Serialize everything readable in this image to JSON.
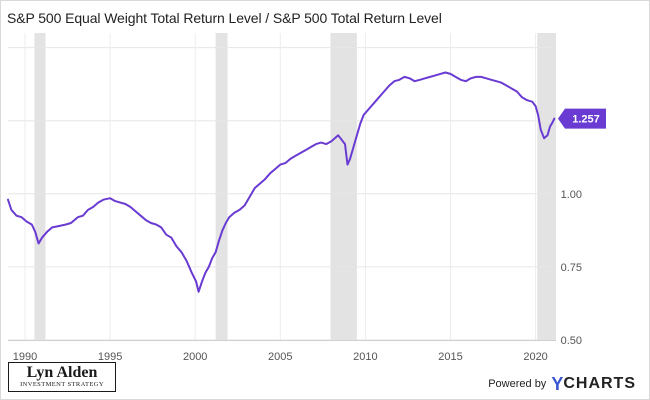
{
  "chart_data": {
    "type": "line",
    "title": "S&P 500 Equal Weight Total Return Level / S&P 500 Total Return Level",
    "xlabel": "",
    "ylabel": "",
    "xlim": [
      1989.0,
      2021.2
    ],
    "ylim": [
      0.5,
      1.55
    ],
    "x_ticks": [
      "1990",
      "1995",
      "2000",
      "2005",
      "2010",
      "2015",
      "2020"
    ],
    "y_ticks": [
      "0.50",
      "0.75",
      "1.00"
    ],
    "grid": true,
    "y_axis_side": "right",
    "line_color": "#6a3bd2",
    "recession_color": "#e3e3e3",
    "recessions": [
      [
        1990.55,
        1991.2
      ],
      [
        2001.2,
        2001.9
      ],
      [
        2007.95,
        2009.5
      ],
      [
        2020.1,
        2021.2
      ]
    ],
    "last_value_label": "1.257",
    "series": [
      {
        "values": [
          [
            1989.0,
            0.98
          ],
          [
            1989.2,
            0.945
          ],
          [
            1989.5,
            0.925
          ],
          [
            1989.8,
            0.92
          ],
          [
            1990.1,
            0.905
          ],
          [
            1990.4,
            0.895
          ],
          [
            1990.6,
            0.87
          ],
          [
            1990.8,
            0.83
          ],
          [
            1991.0,
            0.85
          ],
          [
            1991.3,
            0.87
          ],
          [
            1991.6,
            0.885
          ],
          [
            1992.0,
            0.89
          ],
          [
            1992.4,
            0.895
          ],
          [
            1992.7,
            0.9
          ],
          [
            1992.9,
            0.91
          ],
          [
            1993.1,
            0.92
          ],
          [
            1993.4,
            0.925
          ],
          [
            1993.7,
            0.945
          ],
          [
            1994.0,
            0.955
          ],
          [
            1994.3,
            0.97
          ],
          [
            1994.6,
            0.98
          ],
          [
            1995.0,
            0.985
          ],
          [
            1995.3,
            0.975
          ],
          [
            1995.6,
            0.97
          ],
          [
            1995.9,
            0.965
          ],
          [
            1996.2,
            0.955
          ],
          [
            1996.5,
            0.94
          ],
          [
            1996.8,
            0.925
          ],
          [
            1997.1,
            0.91
          ],
          [
            1997.4,
            0.9
          ],
          [
            1997.7,
            0.895
          ],
          [
            1998.0,
            0.885
          ],
          [
            1998.3,
            0.86
          ],
          [
            1998.6,
            0.85
          ],
          [
            1998.9,
            0.82
          ],
          [
            1999.2,
            0.8
          ],
          [
            1999.5,
            0.77
          ],
          [
            1999.8,
            0.73
          ],
          [
            2000.05,
            0.7
          ],
          [
            2000.2,
            0.665
          ],
          [
            2000.4,
            0.7
          ],
          [
            2000.6,
            0.73
          ],
          [
            2000.8,
            0.75
          ],
          [
            2001.0,
            0.78
          ],
          [
            2001.2,
            0.8
          ],
          [
            2001.4,
            0.84
          ],
          [
            2001.6,
            0.875
          ],
          [
            2001.8,
            0.9
          ],
          [
            2002.0,
            0.92
          ],
          [
            2002.3,
            0.935
          ],
          [
            2002.6,
            0.945
          ],
          [
            2002.9,
            0.96
          ],
          [
            2003.2,
            0.99
          ],
          [
            2003.5,
            1.02
          ],
          [
            2003.8,
            1.035
          ],
          [
            2004.1,
            1.05
          ],
          [
            2004.4,
            1.07
          ],
          [
            2004.7,
            1.085
          ],
          [
            2005.0,
            1.1
          ],
          [
            2005.3,
            1.105
          ],
          [
            2005.6,
            1.12
          ],
          [
            2005.9,
            1.13
          ],
          [
            2006.2,
            1.14
          ],
          [
            2006.5,
            1.15
          ],
          [
            2006.8,
            1.16
          ],
          [
            2007.1,
            1.17
          ],
          [
            2007.4,
            1.175
          ],
          [
            2007.7,
            1.17
          ],
          [
            2008.0,
            1.18
          ],
          [
            2008.2,
            1.19
          ],
          [
            2008.4,
            1.2
          ],
          [
            2008.6,
            1.185
          ],
          [
            2008.8,
            1.17
          ],
          [
            2008.95,
            1.1
          ],
          [
            2009.1,
            1.12
          ],
          [
            2009.3,
            1.16
          ],
          [
            2009.5,
            1.2
          ],
          [
            2009.7,
            1.24
          ],
          [
            2009.9,
            1.27
          ],
          [
            2010.2,
            1.29
          ],
          [
            2010.5,
            1.31
          ],
          [
            2010.8,
            1.33
          ],
          [
            2011.1,
            1.35
          ],
          [
            2011.4,
            1.37
          ],
          [
            2011.7,
            1.385
          ],
          [
            2012.0,
            1.39
          ],
          [
            2012.3,
            1.4
          ],
          [
            2012.6,
            1.395
          ],
          [
            2012.9,
            1.385
          ],
          [
            2013.2,
            1.39
          ],
          [
            2013.5,
            1.395
          ],
          [
            2013.8,
            1.4
          ],
          [
            2014.1,
            1.405
          ],
          [
            2014.4,
            1.41
          ],
          [
            2014.7,
            1.415
          ],
          [
            2015.0,
            1.41
          ],
          [
            2015.3,
            1.4
          ],
          [
            2015.6,
            1.39
          ],
          [
            2015.9,
            1.385
          ],
          [
            2016.2,
            1.395
          ],
          [
            2016.5,
            1.4
          ],
          [
            2016.8,
            1.4
          ],
          [
            2017.1,
            1.395
          ],
          [
            2017.4,
            1.39
          ],
          [
            2017.7,
            1.385
          ],
          [
            2018.0,
            1.38
          ],
          [
            2018.3,
            1.37
          ],
          [
            2018.6,
            1.36
          ],
          [
            2018.9,
            1.35
          ],
          [
            2019.2,
            1.33
          ],
          [
            2019.5,
            1.32
          ],
          [
            2019.8,
            1.315
          ],
          [
            2020.0,
            1.3
          ],
          [
            2020.15,
            1.27
          ],
          [
            2020.3,
            1.22
          ],
          [
            2020.5,
            1.19
          ],
          [
            2020.7,
            1.2
          ],
          [
            2020.85,
            1.23
          ],
          [
            2021.0,
            1.245
          ],
          [
            2021.1,
            1.257
          ]
        ]
      }
    ]
  },
  "branding": {
    "logo_name": "Lyn Alden",
    "logo_subtitle": "INVESTMENT STRATEGY",
    "powered_by": "Powered by",
    "ycharts_y": "Y",
    "ycharts_rest": "CHARTS"
  }
}
